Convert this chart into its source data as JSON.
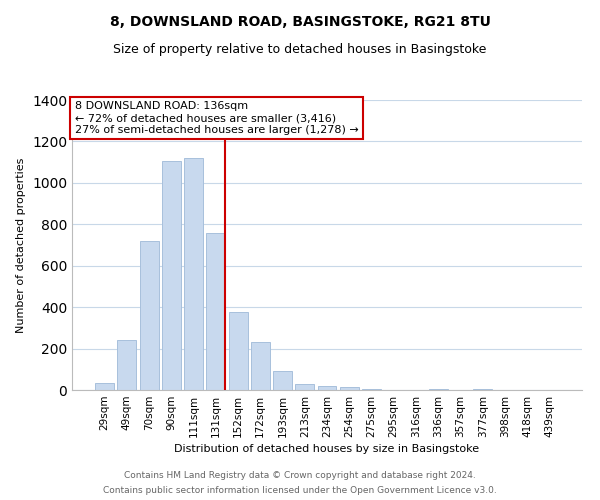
{
  "title": "8, DOWNSLAND ROAD, BASINGSTOKE, RG21 8TU",
  "subtitle": "Size of property relative to detached houses in Basingstoke",
  "xlabel": "Distribution of detached houses by size in Basingstoke",
  "ylabel": "Number of detached properties",
  "bar_labels": [
    "29sqm",
    "49sqm",
    "70sqm",
    "90sqm",
    "111sqm",
    "131sqm",
    "152sqm",
    "172sqm",
    "193sqm",
    "213sqm",
    "234sqm",
    "254sqm",
    "275sqm",
    "295sqm",
    "316sqm",
    "336sqm",
    "357sqm",
    "377sqm",
    "398sqm",
    "418sqm",
    "439sqm"
  ],
  "bar_values": [
    35,
    240,
    720,
    1105,
    1120,
    760,
    378,
    230,
    90,
    30,
    20,
    15,
    5,
    0,
    0,
    5,
    0,
    5,
    0,
    0,
    0
  ],
  "bar_color": "#c8d9ee",
  "bar_edge_color": "#a8c0dc",
  "vline_x_index": 5,
  "vline_color": "#cc0000",
  "annotation_text": "8 DOWNSLAND ROAD: 136sqm\n← 72% of detached houses are smaller (3,416)\n27% of semi-detached houses are larger (1,278) →",
  "annotation_box_color": "#ffffff",
  "annotation_box_edge": "#cc0000",
  "ylim": [
    0,
    1400
  ],
  "yticks": [
    0,
    200,
    400,
    600,
    800,
    1000,
    1200,
    1400
  ],
  "footer_line1": "Contains HM Land Registry data © Crown copyright and database right 2024.",
  "footer_line2": "Contains public sector information licensed under the Open Government Licence v3.0.",
  "background_color": "#ffffff",
  "grid_color": "#c8d8e8",
  "title_fontsize": 10,
  "subtitle_fontsize": 9,
  "axis_label_fontsize": 8,
  "tick_fontsize": 7.5
}
